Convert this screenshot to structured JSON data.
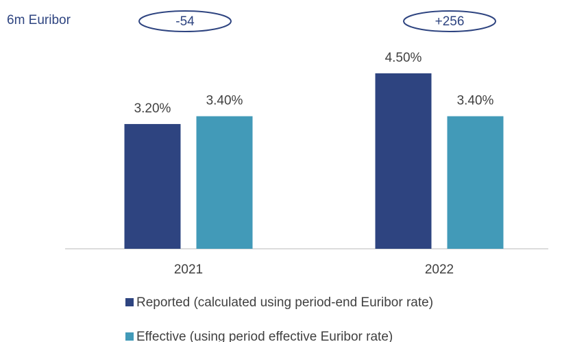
{
  "chart_data": {
    "type": "bar",
    "annotation_title": "6m Euribor",
    "annotations": [
      "-54",
      "+256"
    ],
    "categories": [
      "2021",
      "2022"
    ],
    "series": [
      {
        "name": "Reported (calculated using period-end Euribor rate)",
        "color": "#2e4480",
        "values": [
          3.2,
          4.5
        ],
        "value_labels": [
          "3.20%",
          "4.50%"
        ]
      },
      {
        "name": "Effective (using period effective Euribor rate)",
        "color": "#429ab8",
        "values": [
          3.4,
          3.4
        ],
        "value_labels": [
          "3.40%",
          "3.40%"
        ]
      }
    ],
    "legend": "bottom"
  }
}
